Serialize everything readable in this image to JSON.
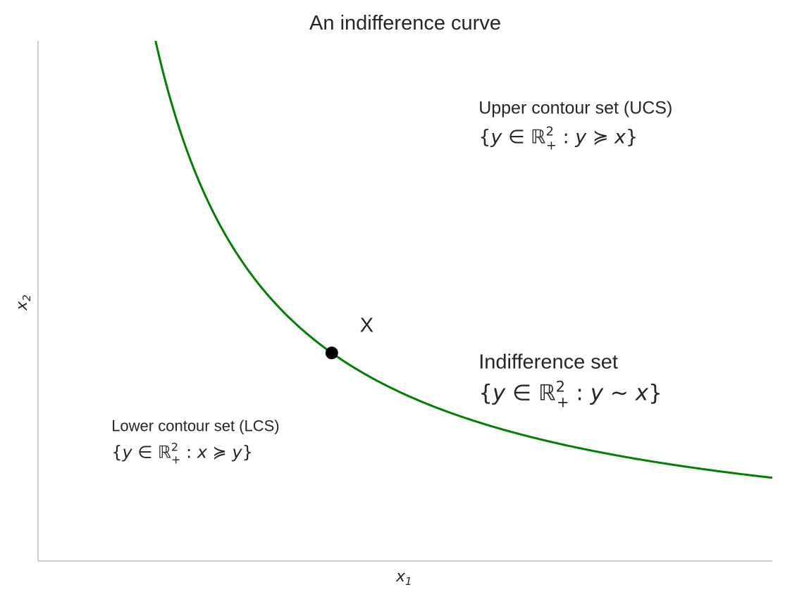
{
  "chart_data": {
    "type": "line",
    "title": "An indifference curve",
    "xlabel": "x",
    "xlabel_sub": "1",
    "ylabel": "x",
    "ylabel_sub": "2",
    "xlim": [
      0,
      10
    ],
    "ylim": [
      0,
      10
    ],
    "grid": false,
    "show_ticks": false,
    "series": [
      {
        "color": "#008000",
        "function": "y = 16 / x",
        "x_range": [
          1.6,
          10
        ]
      }
    ],
    "point": {
      "x": 4,
      "y": 4,
      "label": "X",
      "color": "#000000"
    },
    "annotations": {
      "upper": {
        "x": 6,
        "y": 8.6,
        "line1": "Upper contour set (UCS)",
        "set_open": "{",
        "set_var": "y",
        "set_in": " ∈ ",
        "set_R": "ℝ",
        "set_sup": "2",
        "set_sub": "+",
        "set_colon": " : ",
        "set_lhs": "y",
        "set_rel": " ≽ ",
        "set_rhs": "x",
        "set_close": "}"
      },
      "indiff": {
        "x": 6,
        "y": 3.7,
        "color": "#008000",
        "line1": "Indifference set",
        "set_open": "{",
        "set_var": "y",
        "set_in": " ∈ ",
        "set_R": "ℝ",
        "set_sup": "2",
        "set_sub": "+",
        "set_colon": " : ",
        "set_lhs": "y",
        "set_rel": " ∼ ",
        "set_rhs": "x",
        "set_close": "}"
      },
      "lower": {
        "x": 1,
        "y": 2.5,
        "line1": "Lower contour set (LCS)",
        "set_open": "{",
        "set_var": "y",
        "set_in": " ∈ ",
        "set_R": "ℝ",
        "set_sup": "2",
        "set_sub": "+",
        "set_colon": " : ",
        "set_lhs": "x",
        "set_rel": " ≽ ",
        "set_rhs": "y",
        "set_close": "}"
      }
    }
  }
}
